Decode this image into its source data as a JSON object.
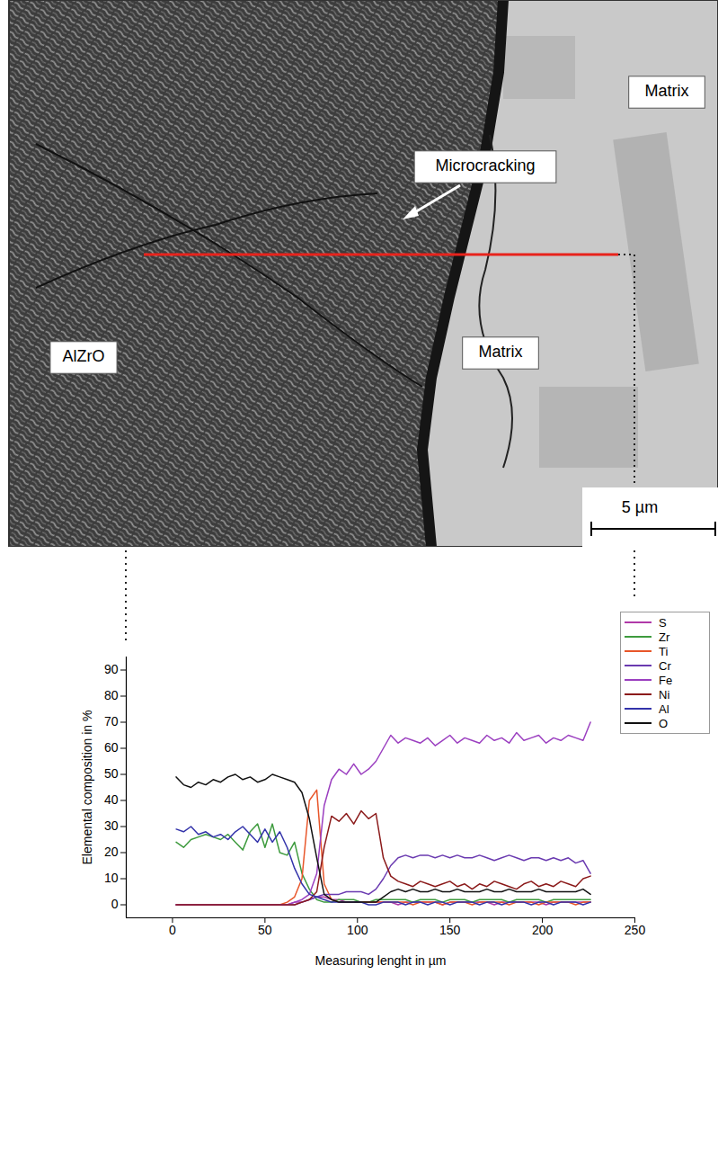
{
  "chart_data": {
    "type": "line",
    "x_label": "Measuring lenght in µm",
    "y_label": "Elemental composition in %",
    "annotations": [
      "AlZrO",
      "Matrix",
      "Matrix",
      "Microcracking",
      "5 µm"
    ],
    "x": [
      2,
      6,
      10,
      14,
      18,
      22,
      26,
      30,
      34,
      38,
      42,
      46,
      50,
      54,
      58,
      62,
      66,
      70,
      74,
      78,
      82,
      86,
      90,
      94,
      98,
      102,
      106,
      110,
      114,
      118,
      122,
      126,
      130,
      134,
      138,
      142,
      146,
      150,
      154,
      158,
      162,
      166,
      170,
      174,
      178,
      182,
      186,
      190,
      194,
      198,
      202,
      206,
      210,
      214,
      218,
      222,
      226
    ],
    "series": [
      {
        "name": "S",
        "color": "#b03aa8",
        "values": [
          0,
          0,
          0,
          0,
          0,
          0,
          0,
          0,
          0,
          0,
          0,
          0,
          0,
          0,
          0,
          0,
          1,
          1,
          2,
          3,
          3,
          2,
          2,
          1,
          1,
          1,
          1,
          1,
          1,
          1,
          0,
          1,
          1,
          1,
          1,
          1,
          0,
          1,
          1,
          1,
          1,
          1,
          1,
          0,
          1,
          1,
          1,
          1,
          1,
          1,
          0,
          1,
          1,
          1,
          1,
          1,
          1
        ]
      },
      {
        "name": "Zr",
        "color": "#3e9b3e",
        "values": [
          24,
          22,
          25,
          26,
          27,
          26,
          25,
          27,
          24,
          21,
          28,
          31,
          22,
          31,
          20,
          19,
          24,
          12,
          6,
          2,
          1,
          1,
          2,
          2,
          2,
          1,
          1,
          2,
          2,
          2,
          2,
          2,
          1,
          2,
          2,
          2,
          1,
          2,
          2,
          2,
          1,
          2,
          2,
          2,
          2,
          1,
          2,
          2,
          2,
          2,
          1,
          2,
          2,
          2,
          2,
          2,
          2
        ]
      },
      {
        "name": "Ti",
        "color": "#e8562a",
        "values": [
          0,
          0,
          0,
          0,
          0,
          0,
          0,
          0,
          0,
          0,
          0,
          0,
          0,
          0,
          0,
          1,
          3,
          10,
          40,
          44,
          8,
          2,
          1,
          1,
          1,
          1,
          1,
          1,
          1,
          1,
          1,
          1,
          0,
          1,
          1,
          1,
          0,
          1,
          1,
          1,
          0,
          1,
          1,
          1,
          1,
          0,
          1,
          1,
          1,
          0,
          1,
          1,
          1,
          1,
          0,
          1,
          1
        ]
      },
      {
        "name": "Cr",
        "color": "#6a3ab0",
        "values": [
          0,
          0,
          0,
          0,
          0,
          0,
          0,
          0,
          0,
          0,
          0,
          0,
          0,
          0,
          0,
          0,
          0,
          1,
          2,
          3,
          4,
          4,
          4,
          5,
          5,
          5,
          4,
          6,
          10,
          15,
          18,
          19,
          18,
          19,
          19,
          18,
          19,
          18,
          19,
          18,
          18,
          19,
          18,
          17,
          18,
          19,
          18,
          17,
          18,
          18,
          17,
          18,
          17,
          18,
          16,
          17,
          12
        ]
      },
      {
        "name": "Fe",
        "color": "#9b3fc0",
        "values": [
          0,
          0,
          0,
          0,
          0,
          0,
          0,
          0,
          0,
          0,
          0,
          0,
          0,
          0,
          0,
          0,
          1,
          2,
          4,
          12,
          38,
          48,
          52,
          50,
          54,
          50,
          52,
          55,
          60,
          65,
          62,
          64,
          63,
          62,
          64,
          61,
          63,
          65,
          62,
          64,
          63,
          62,
          65,
          63,
          64,
          62,
          66,
          63,
          64,
          65,
          62,
          64,
          63,
          65,
          64,
          63,
          70
        ]
      },
      {
        "name": "Ni",
        "color": "#8b1a1a",
        "values": [
          0,
          0,
          0,
          0,
          0,
          0,
          0,
          0,
          0,
          0,
          0,
          0,
          0,
          0,
          0,
          0,
          0,
          1,
          2,
          5,
          22,
          34,
          32,
          35,
          31,
          36,
          33,
          35,
          18,
          11,
          9,
          8,
          7,
          9,
          8,
          7,
          8,
          9,
          7,
          8,
          6,
          8,
          7,
          9,
          8,
          7,
          6,
          8,
          9,
          7,
          8,
          7,
          9,
          8,
          7,
          10,
          11
        ]
      },
      {
        "name": "Al",
        "color": "#3333aa",
        "values": [
          29,
          28,
          30,
          27,
          28,
          26,
          27,
          25,
          28,
          30,
          27,
          24,
          29,
          24,
          28,
          22,
          14,
          8,
          4,
          3,
          2,
          1,
          1,
          1,
          1,
          1,
          0,
          0,
          1,
          1,
          1,
          0,
          1,
          1,
          0,
          1,
          1,
          0,
          1,
          1,
          1,
          0,
          1,
          1,
          0,
          1,
          1,
          1,
          0,
          1,
          1,
          0,
          1,
          1,
          1,
          0,
          1
        ]
      },
      {
        "name": "O",
        "color": "#111111",
        "values": [
          49,
          46,
          45,
          47,
          46,
          48,
          47,
          49,
          50,
          48,
          49,
          47,
          48,
          50,
          49,
          48,
          47,
          43,
          33,
          18,
          4,
          2,
          1,
          1,
          1,
          1,
          1,
          1,
          3,
          5,
          6,
          5,
          6,
          5,
          5,
          6,
          5,
          5,
          6,
          5,
          5,
          5,
          6,
          5,
          5,
          6,
          5,
          5,
          5,
          6,
          5,
          5,
          5,
          5,
          5,
          6,
          4
        ]
      }
    ],
    "xlim": [
      -25,
      250
    ],
    "xticks": [
      0,
      50,
      100,
      150,
      200,
      250
    ],
    "ylim": [
      -5,
      95
    ],
    "yticks": [
      0,
      10,
      20,
      30,
      40,
      50,
      60,
      70,
      80,
      90
    ],
    "grid": false,
    "legend": "top-right"
  }
}
